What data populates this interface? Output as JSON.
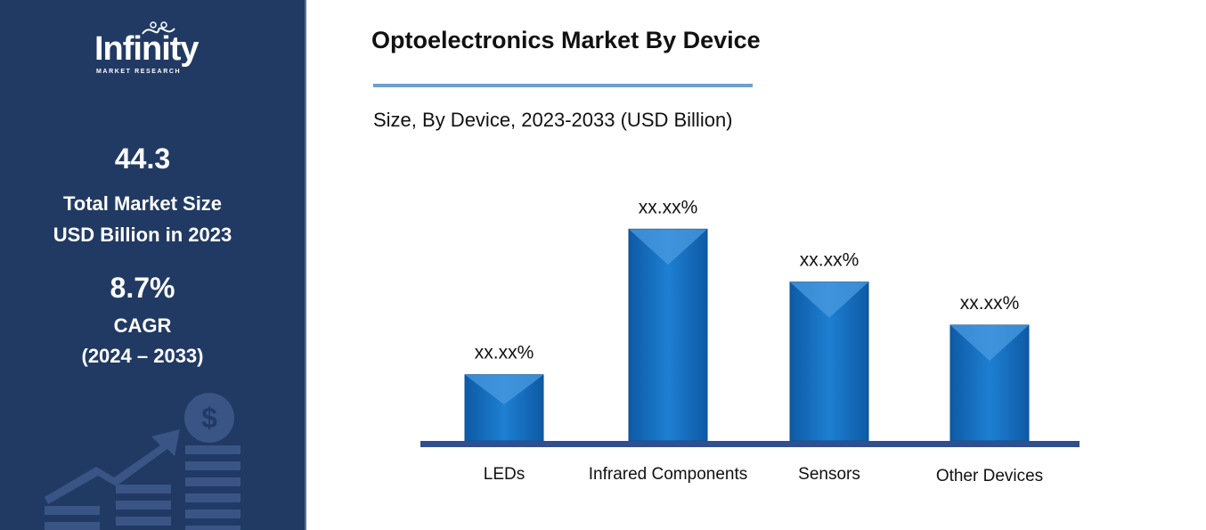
{
  "sidebar": {
    "logo": {
      "word": "Infinity",
      "sub": "MARKET RESEARCH"
    },
    "market_size": {
      "value": "44.3",
      "label_line1": "Total Market Size",
      "label_line2": "USD Billion in 2023"
    },
    "cagr": {
      "value": "8.7%",
      "label_line1": "CAGR",
      "label_line2": "(2024 – 2033)"
    },
    "background_color": "#213a64"
  },
  "chart_data": {
    "type": "bar",
    "title": "Optoelectronics Market By Device",
    "subtitle": "Size, By Device, 2023-2033 (USD Billion)",
    "categories": [
      "LEDs",
      "Infrared Components",
      "Sensors",
      "Other Devices"
    ],
    "values": [
      10,
      32,
      24,
      17.5
    ],
    "data_labels": [
      "xx.xx%",
      "xx.xx%",
      "xx.xx%",
      "xx.xx%"
    ],
    "ylim": [
      0,
      35
    ],
    "grid": false,
    "legend": "none",
    "bar_color": "#1a72c2",
    "baseline_color": "#2f4f8f"
  }
}
